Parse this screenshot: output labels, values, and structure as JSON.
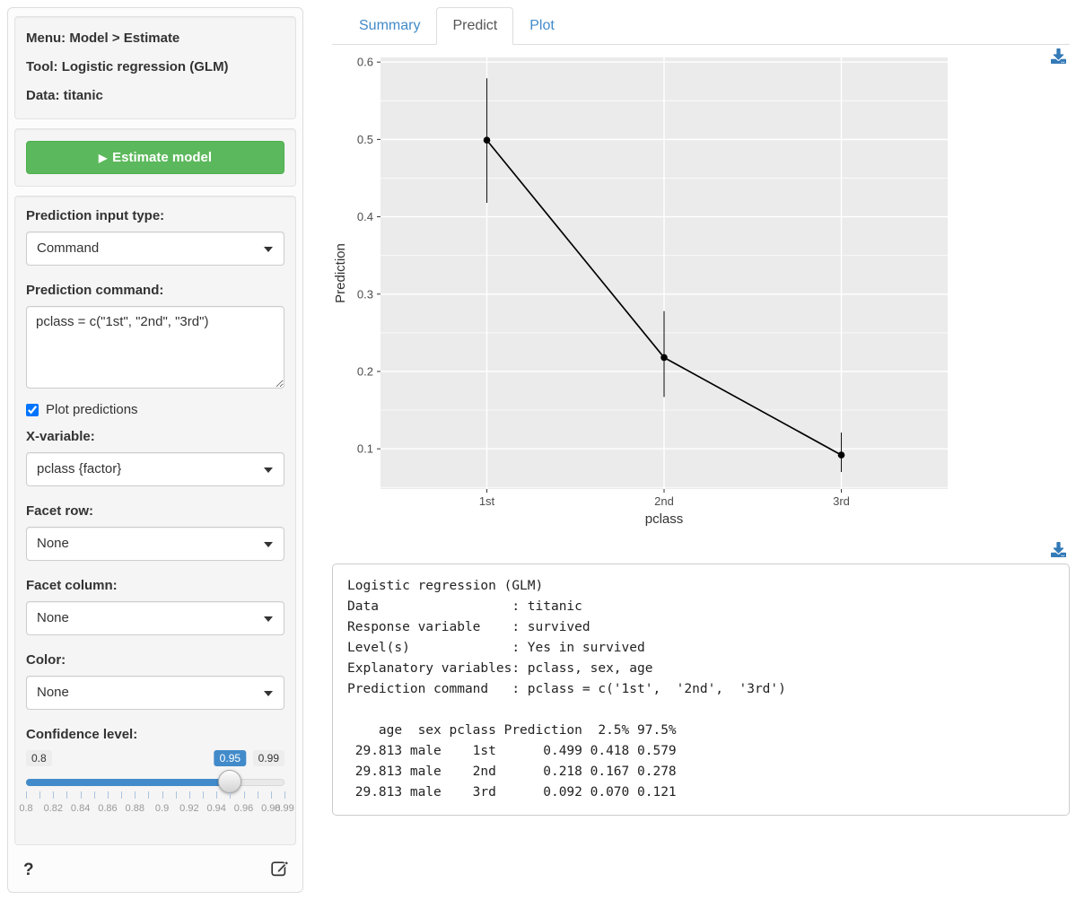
{
  "sidebar": {
    "info": {
      "menu": "Menu: Model > Estimate",
      "tool": "Tool: Logistic regression (GLM)",
      "data": "Data: titanic"
    },
    "estimate_button": {
      "icon": "▶",
      "label": "Estimate model"
    },
    "fields": {
      "input_type": {
        "label": "Prediction input type:",
        "value": "Command"
      },
      "command": {
        "label": "Prediction command:",
        "value": "pclass = c(\"1st\", \"2nd\", \"3rd\")"
      },
      "plot_predictions": {
        "label": "Plot predictions",
        "checked": true
      },
      "xvar": {
        "label": "X-variable:",
        "value": "pclass {factor}"
      },
      "facet_row": {
        "label": "Facet row:",
        "value": "None"
      },
      "facet_col": {
        "label": "Facet column:",
        "value": "None"
      },
      "color": {
        "label": "Color:",
        "value": "None"
      },
      "conf": {
        "label": "Confidence level:",
        "min": 0.8,
        "max": 0.99,
        "value": 0.95,
        "step": 0.01,
        "min_label": "0.8",
        "max_label": "0.99",
        "value_label": "0.95",
        "tick_labels": [
          "0.8",
          "0.82",
          "0.84",
          "0.86",
          "0.88",
          "0.9",
          "0.92",
          "0.94",
          "0.96",
          "0.98",
          "0.99"
        ]
      }
    },
    "help_icon_label": "?"
  },
  "tabs": [
    {
      "label": "Summary",
      "active": false
    },
    {
      "label": "Predict",
      "active": true
    },
    {
      "label": "Plot",
      "active": false
    }
  ],
  "chart_data": {
    "type": "line",
    "title": "",
    "xlabel": "pclass",
    "ylabel": "Prediction",
    "categories": [
      "1st",
      "2nd",
      "3rd"
    ],
    "series": [
      {
        "name": "Prediction",
        "values": [
          0.499,
          0.218,
          0.092
        ],
        "ci_low": [
          0.418,
          0.167,
          0.07
        ],
        "ci_high": [
          0.579,
          0.278,
          0.121
        ]
      }
    ],
    "ylim": [
      0.048,
      0.606
    ],
    "yticks": [
      0.1,
      0.2,
      0.3,
      0.4,
      0.5,
      0.6
    ],
    "minor_yticks": [
      0.05,
      0.15,
      0.25,
      0.35,
      0.45,
      0.55
    ],
    "grid": true,
    "legend": "none",
    "panel_bg": "#ebebeb",
    "grid_color": "#ffffff",
    "point_color": "#000000"
  },
  "output": {
    "lines": [
      "Logistic regression (GLM)",
      "Data                 : titanic",
      "Response variable    : survived",
      "Level(s)             : Yes in survived",
      "Explanatory variables: pclass, sex, age",
      "Prediction command   : pclass = c('1st',  '2nd',  '3rd')",
      "",
      "    age  sex pclass Prediction  2.5% 97.5%",
      " 29.813 male    1st      0.499 0.418 0.579",
      " 29.813 male    2nd      0.218 0.167 0.278",
      " 29.813 male    3rd      0.092 0.070 0.121"
    ]
  },
  "colors": {
    "accent_blue": "#428bca",
    "icon_blue": "#337ab7",
    "button_green": "#5cb85c",
    "well_bg": "#f5f5f5"
  }
}
